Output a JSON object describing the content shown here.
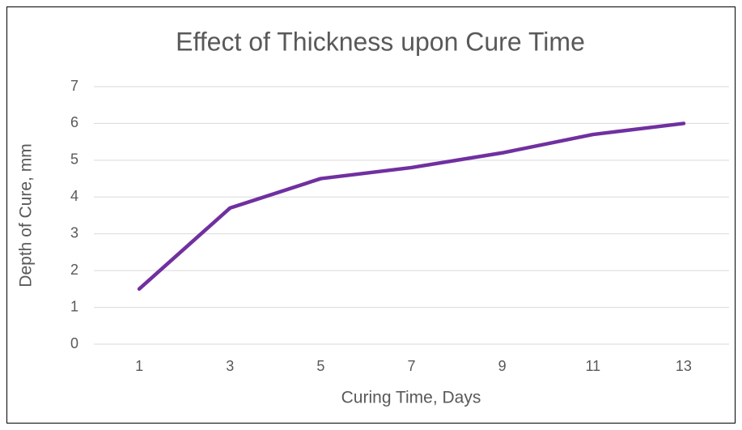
{
  "chart_data": {
    "type": "line",
    "title": "Effect of Thickness upon Cure Time",
    "x_label": "Curing Time, Days",
    "y_label": "Depth of Cure, mm",
    "categories": [
      "1",
      "3",
      "5",
      "7",
      "9",
      "11",
      "13"
    ],
    "series": [
      {
        "name": "Depth of Cure",
        "color": "#7030a0",
        "values": [
          1.5,
          3.7,
          4.5,
          4.8,
          5.2,
          5.7,
          6.0
        ]
      }
    ],
    "ylim": [
      0,
      7
    ],
    "yticks": [
      0,
      1,
      2,
      3,
      4,
      5,
      6,
      7
    ],
    "grid": true
  }
}
